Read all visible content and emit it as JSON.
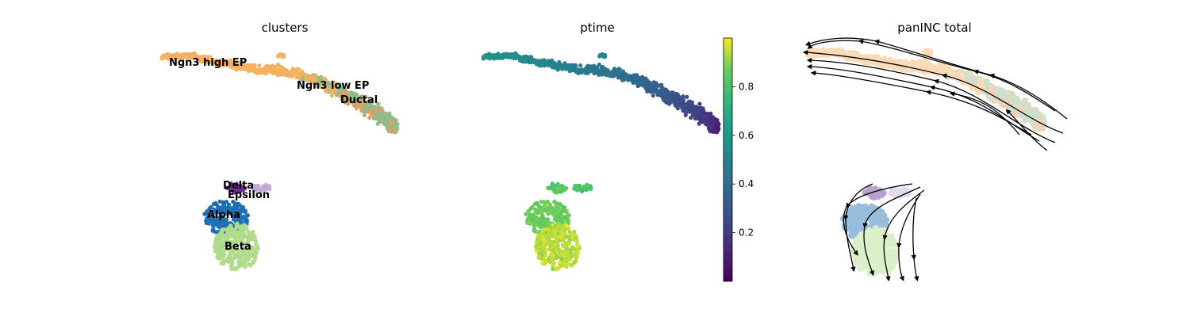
{
  "chart_data": [
    {
      "type": "scatter",
      "title": "clusters",
      "color_by": "clusters",
      "labels": [
        "Ngn3 high EP",
        "Ngn3 low EP",
        "Ductal",
        "Delta",
        "Epsilon",
        "Alpha",
        "Beta"
      ],
      "legend": "on data",
      "colors": {
        "Ngn3 high EP": "#f5b162",
        "Ngn3 low EP": "#f09a5c",
        "Ductal": "#8fbc8f",
        "Delta": "#6a2c91",
        "Epsilon": "#c4a9d8",
        "Alpha": "#1f6fb4",
        "Beta": "#b0dc8c"
      },
      "grid": false
    },
    {
      "type": "scatter",
      "title": "ptime",
      "color_by": "ptime",
      "colormap": "viridis",
      "colorbar": {
        "range": [
          0.0,
          1.0
        ],
        "ticks": [
          "0.2",
          "0.4",
          "0.6",
          "0.8"
        ]
      },
      "grid": false
    },
    {
      "type": "scatter",
      "title": "panINC total",
      "overlay": "velocity streamlines",
      "grid": false
    }
  ]
}
